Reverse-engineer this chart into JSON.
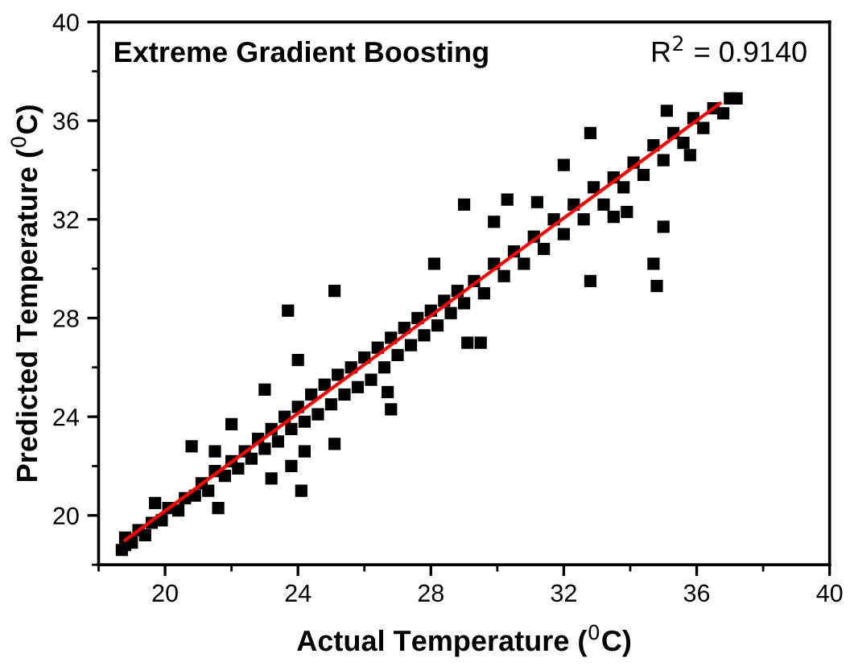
{
  "chart_data": {
    "type": "scatter",
    "xlabel": "Actual Temperature ($^{0}$C)",
    "ylabel": "Predicted Temperature ($^{0}$C)",
    "annotations": [
      "Extreme Gradient Boosting",
      "R$^{2}$ = 0.9140"
    ],
    "xlim": [
      18,
      40
    ],
    "ylim": [
      18,
      40
    ],
    "xticks": [
      20,
      24,
      28,
      32,
      36,
      40
    ],
    "yticks": [
      20,
      24,
      28,
      32,
      36,
      40
    ],
    "grid": false,
    "marker": "square",
    "series": [
      {
        "color": "#000000",
        "x": [
          18.7,
          18.8,
          19.0,
          19.2,
          19.4,
          19.6,
          19.9,
          20.1,
          20.4,
          20.6,
          20.9,
          21.1,
          21.3,
          21.5,
          21.8,
          22.0,
          22.2,
          22.4,
          22.6,
          22.8,
          23.0,
          23.2,
          23.4,
          23.6,
          23.8,
          24.0,
          24.2,
          24.4,
          24.6,
          24.8,
          25.0,
          25.2,
          25.4,
          25.6,
          25.8,
          26.0,
          26.2,
          26.4,
          26.6,
          26.8,
          27.0,
          27.2,
          27.4,
          27.6,
          27.8,
          28.0,
          28.2,
          28.4,
          28.6,
          28.8,
          29.0,
          29.3,
          29.6,
          29.9,
          30.2,
          30.5,
          30.8,
          31.1,
          31.4,
          31.7,
          32.0,
          32.3,
          32.6,
          32.9,
          33.2,
          33.5,
          33.8,
          34.1,
          34.4,
          34.7,
          35.0,
          35.3,
          35.6,
          35.9,
          36.2,
          36.5,
          36.8,
          37.0,
          23.7,
          25.1,
          29.0,
          30.3,
          31.2,
          32.0,
          32.8,
          35.1,
          34.7,
          34.8,
          35.0,
          32.8,
          28.1,
          29.9,
          33.5,
          33.9,
          35.8,
          37.2,
          23.0,
          22.0,
          20.8,
          21.5,
          21.6,
          19.7,
          23.2,
          24.1,
          23.8,
          24.2,
          25.1,
          26.8,
          26.7,
          24.0,
          29.5,
          29.1,
          18.8
        ],
        "values": [
          18.6,
          19.1,
          18.9,
          19.4,
          19.2,
          19.7,
          19.8,
          20.3,
          20.2,
          20.7,
          20.8,
          21.3,
          21.0,
          21.8,
          21.6,
          22.2,
          21.9,
          22.6,
          22.3,
          23.1,
          22.7,
          23.5,
          23.0,
          24.0,
          23.5,
          24.4,
          23.8,
          24.9,
          24.1,
          25.3,
          24.5,
          25.7,
          24.9,
          26.0,
          25.2,
          26.4,
          25.5,
          26.8,
          26.0,
          27.2,
          26.5,
          27.6,
          26.9,
          28.0,
          27.3,
          28.3,
          27.7,
          28.7,
          28.2,
          29.1,
          28.6,
          29.5,
          29.0,
          30.2,
          29.7,
          30.7,
          30.2,
          31.3,
          30.8,
          32.0,
          31.4,
          32.6,
          32.0,
          33.3,
          32.6,
          33.7,
          33.3,
          34.3,
          33.8,
          35.0,
          34.4,
          35.5,
          35.1,
          36.1,
          35.7,
          36.5,
          36.3,
          36.9,
          28.3,
          29.1,
          32.6,
          32.8,
          32.7,
          34.2,
          35.5,
          36.4,
          30.2,
          29.3,
          31.7,
          29.5,
          30.2,
          31.9,
          32.1,
          32.3,
          34.6,
          36.9,
          25.1,
          23.7,
          22.8,
          22.6,
          20.3,
          20.5,
          21.5,
          21.0,
          22.0,
          22.6,
          22.9,
          24.3,
          25.0,
          26.3,
          27.0,
          27.0,
          18.8
        ]
      },
      {
        "type": "line",
        "color": "#ff0000",
        "marker": "none",
        "x": [
          18.8,
          36.7
        ],
        "values": [
          19.0,
          36.7
        ]
      }
    ]
  }
}
